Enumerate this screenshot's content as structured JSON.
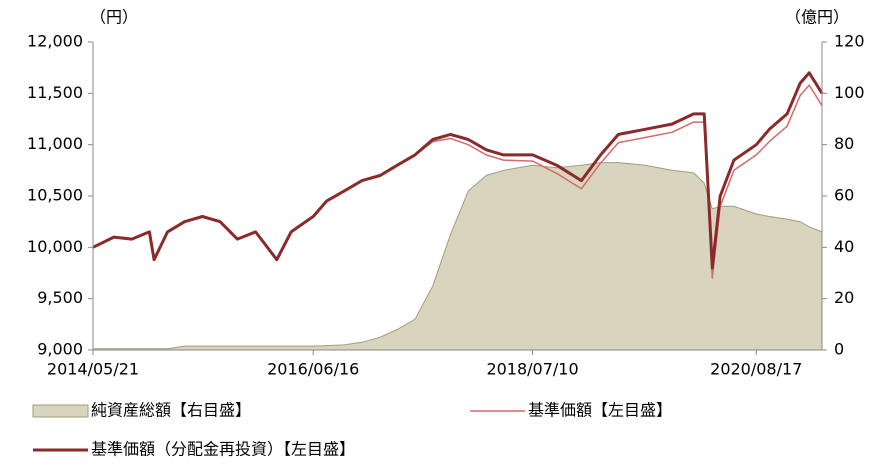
{
  "chart_data": {
    "type": "line",
    "y_label": "（円）",
    "y2_label": "（億円）",
    "x": [
      "2014/05/21",
      "2014/08/01",
      "2014/10/01",
      "2014/12/01",
      "2014/12/17",
      "2015/02/01",
      "2015/04/01",
      "2015/06/01",
      "2015/08/01",
      "2015/09/29",
      "2015/12/01",
      "2016/02/12",
      "2016/04/01",
      "2016/06/16",
      "2016/08/01",
      "2016/10/01",
      "2016/12/01",
      "2017/02/01",
      "2017/04/01",
      "2017/06/01",
      "2017/08/01",
      "2017/10/01",
      "2017/12/01",
      "2018/02/01",
      "2018/04/01",
      "2018/07/10",
      "2018/10/01",
      "2018/12/25",
      "2019/03/01",
      "2019/05/01",
      "2019/08/01",
      "2019/11/01",
      "2020/01/15",
      "2020/02/20",
      "2020/03/19",
      "2020/04/15",
      "2020/06/01",
      "2020/08/17",
      "2020/10/01",
      "2020/12/01",
      "2021/01/15",
      "2021/02/15",
      "2021/03/31"
    ],
    "xlim": [
      "2014/05/21",
      "2021/03/31"
    ],
    "xticks": [
      "2014/05/21",
      "2016/06/16",
      "2018/07/10",
      "2020/08/17"
    ],
    "ylim": [
      9000,
      12000
    ],
    "yticks": [
      {
        "value": 9000,
        "label": "9,000"
      },
      {
        "value": 9500,
        "label": "9,500"
      },
      {
        "value": 10000,
        "label": "10,000"
      },
      {
        "value": 10500,
        "label": "10,500"
      },
      {
        "value": 11000,
        "label": "11,000"
      },
      {
        "value": 11500,
        "label": "11,500"
      },
      {
        "value": 12000,
        "label": "12,000"
      }
    ],
    "y2lim": [
      0,
      120
    ],
    "y2ticks": [
      0,
      20,
      40,
      60,
      80,
      100,
      120
    ],
    "series": [
      {
        "name": "純資産総額【右目盛】",
        "kind": "area",
        "axis": "y2",
        "color": "#d9d4bd",
        "values": [
          0.5,
          0.5,
          0.5,
          0.5,
          0.5,
          0.5,
          1.5,
          1.5,
          1.5,
          1.5,
          1.5,
          1.5,
          1.5,
          1.5,
          1.7,
          2,
          3,
          5,
          8,
          12,
          25,
          45,
          62,
          68,
          70,
          72,
          71,
          72,
          73,
          73,
          72,
          70,
          69,
          65,
          55,
          56,
          56,
          53,
          52,
          51,
          50,
          48,
          46
        ]
      },
      {
        "name": "基準価額【左目盛】",
        "kind": "line",
        "axis": "y",
        "color": "#d46a6a",
        "values": [
          10000,
          10100,
          10080,
          10150,
          9880,
          10150,
          10250,
          10300,
          10250,
          10080,
          10150,
          9880,
          10150,
          10300,
          10450,
          10550,
          10650,
          10700,
          10800,
          10900,
          11030,
          11060,
          11000,
          10900,
          10850,
          10840,
          10720,
          10570,
          10820,
          11020,
          11070,
          11120,
          11220,
          11220,
          9700,
          10400,
          10750,
          10900,
          11030,
          11180,
          11480,
          11580,
          11380
        ]
      },
      {
        "name": "基準価額（分配金再投資）【左目盛】",
        "kind": "line",
        "axis": "y",
        "color": "#8b2a2a",
        "values": [
          10000,
          10100,
          10080,
          10150,
          9880,
          10150,
          10250,
          10300,
          10250,
          10080,
          10150,
          9880,
          10150,
          10300,
          10450,
          10550,
          10650,
          10700,
          10800,
          10900,
          11050,
          11100,
          11050,
          10950,
          10900,
          10900,
          10800,
          10650,
          10900,
          11100,
          11150,
          11200,
          11300,
          11300,
          9800,
          10500,
          10850,
          11000,
          11150,
          11300,
          11600,
          11700,
          11500
        ]
      }
    ]
  }
}
